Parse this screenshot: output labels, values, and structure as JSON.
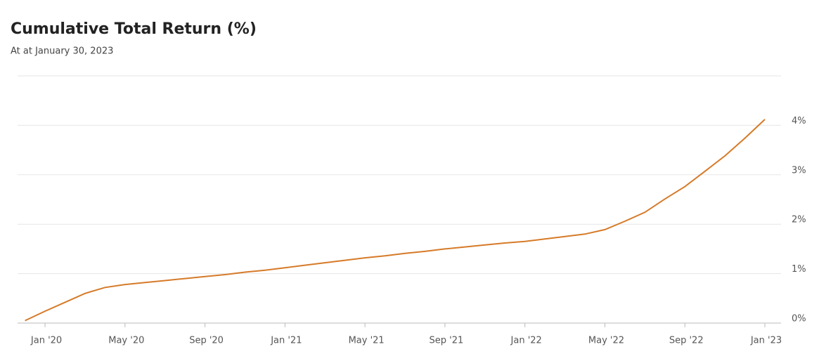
{
  "chart_data": {
    "type": "line",
    "title": "Cumulative Total Return (%)",
    "subtitle": "At at January 30, 2023",
    "x": [
      "2019-12",
      "2020-01",
      "2020-02",
      "2020-03",
      "2020-04",
      "2020-05",
      "2020-06",
      "2020-07",
      "2020-08",
      "2020-09",
      "2020-10",
      "2020-11",
      "2020-12",
      "2021-01",
      "2021-02",
      "2021-03",
      "2021-04",
      "2021-05",
      "2021-06",
      "2021-07",
      "2021-08",
      "2021-09",
      "2021-10",
      "2021-11",
      "2021-12",
      "2022-01",
      "2022-02",
      "2022-03",
      "2022-04",
      "2022-05",
      "2022-06",
      "2022-07",
      "2022-08",
      "2022-09",
      "2022-10",
      "2022-11",
      "2022-12",
      "2023-01"
    ],
    "series": [
      {
        "name": "Cumulative Total Return",
        "color": "#d67a28",
        "values": [
          0.05,
          0.24,
          0.42,
          0.6,
          0.72,
          0.78,
          0.82,
          0.86,
          0.9,
          0.94,
          0.98,
          1.03,
          1.07,
          1.12,
          1.17,
          1.22,
          1.27,
          1.32,
          1.36,
          1.41,
          1.45,
          1.5,
          1.54,
          1.58,
          1.62,
          1.65,
          1.7,
          1.75,
          1.8,
          1.89,
          2.06,
          2.24,
          2.51,
          2.76,
          3.07,
          3.38,
          3.74,
          4.12
        ]
      }
    ],
    "xlim": [
      "2019-12",
      "2023-01"
    ],
    "xticks": [
      {
        "value": "2020-01",
        "label": "Jan '20"
      },
      {
        "value": "2020-05",
        "label": "May '20"
      },
      {
        "value": "2020-09",
        "label": "Sep '20"
      },
      {
        "value": "2021-01",
        "label": "Jan '21"
      },
      {
        "value": "2021-05",
        "label": "May '21"
      },
      {
        "value": "2021-09",
        "label": "Sep '21"
      },
      {
        "value": "2022-01",
        "label": "Jan '22"
      },
      {
        "value": "2022-05",
        "label": "May '22"
      },
      {
        "value": "2022-09",
        "label": "Sep '22"
      },
      {
        "value": "2023-01",
        "label": "Jan '23"
      }
    ],
    "ylim": [
      0,
      5
    ],
    "yticks": [
      {
        "value": 0,
        "label": "0%"
      },
      {
        "value": 1,
        "label": "1%"
      },
      {
        "value": 2,
        "label": "2%"
      },
      {
        "value": 3,
        "label": "3%"
      },
      {
        "value": 4,
        "label": "4%"
      }
    ],
    "grid": true
  }
}
